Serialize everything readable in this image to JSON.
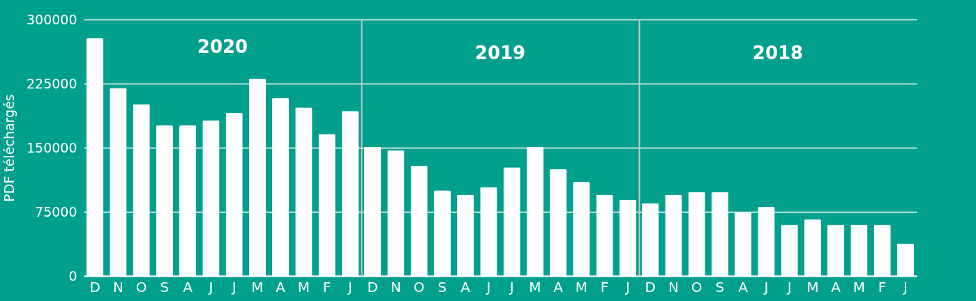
{
  "chart_data": [
    {
      "type": "bar",
      "title": "2020",
      "ylabel": "PDF téléchargés",
      "categories": [
        "D",
        "N",
        "O",
        "S",
        "A",
        "J",
        "J",
        "M",
        "A",
        "M",
        "F",
        "J"
      ],
      "values": [
        278000,
        220000,
        201000,
        176000,
        176000,
        182000,
        191000,
        231000,
        208000,
        197000,
        166000,
        193000
      ],
      "color": "#ffffff",
      "ylim": [
        0,
        300000
      ],
      "yticks": [
        0,
        75000,
        150000,
        225000,
        300000
      ],
      "grid": "y"
    },
    {
      "type": "bar",
      "title": "2019",
      "categories": [
        "D",
        "N",
        "O",
        "S",
        "A",
        "J",
        "J",
        "M",
        "A",
        "M",
        "F",
        "J"
      ],
      "values": [
        151000,
        147000,
        129000,
        100000,
        95000,
        104000,
        127000,
        151000,
        125000,
        110000,
        95000,
        89000
      ],
      "color": "#ffffff",
      "ylim": [
        0,
        300000
      ],
      "yticks": [
        0,
        75000,
        150000,
        225000,
        300000
      ],
      "grid": "y",
      "tick_labels": "x"
    },
    {
      "type": "bar",
      "title": "2018",
      "categories": [
        "D",
        "N",
        "O",
        "S",
        "A",
        "J",
        "J",
        "M",
        "A",
        "M",
        "F",
        "J"
      ],
      "values": [
        85000,
        95000,
        98000,
        98000,
        75000,
        81000,
        60000,
        66000,
        60000,
        60000,
        60000,
        38000
      ],
      "color": "#ffffff",
      "ylim": [
        0,
        300000
      ],
      "yticks": [
        0,
        75000,
        150000,
        225000,
        300000
      ],
      "grid": "y",
      "tick_labels": "x"
    }
  ]
}
